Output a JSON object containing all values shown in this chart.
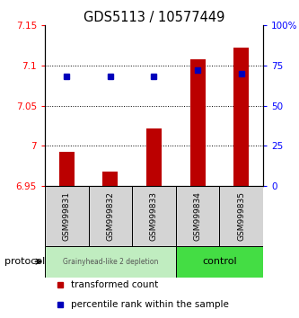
{
  "title": "GDS5113 / 10577449",
  "samples": [
    "GSM999831",
    "GSM999832",
    "GSM999833",
    "GSM999834",
    "GSM999835"
  ],
  "bar_values": [
    6.992,
    6.968,
    7.022,
    7.108,
    7.122
  ],
  "percentile_values": [
    68,
    68,
    68,
    72,
    70
  ],
  "bar_baseline": 6.95,
  "ylim_left": [
    6.95,
    7.15
  ],
  "ylim_right": [
    0,
    100
  ],
  "yticks_left": [
    6.95,
    7.0,
    7.05,
    7.1,
    7.15
  ],
  "ytick_labels_left": [
    "6.95",
    "7",
    "7.05",
    "7.1",
    "7.15"
  ],
  "yticks_right": [
    0,
    25,
    50,
    75,
    100
  ],
  "ytick_labels_right": [
    "0",
    "25",
    "50",
    "75",
    "100%"
  ],
  "hline_values": [
    7.0,
    7.05,
    7.1
  ],
  "group1_label": "Grainyhead-like 2 depletion",
  "group2_label": "control",
  "group1_color": "#c0edc0",
  "group2_color": "#44dd44",
  "group1_indices": [
    0,
    1,
    2
  ],
  "group2_indices": [
    3,
    4
  ],
  "bar_color": "#bb0000",
  "percentile_color": "#0000bb",
  "protocol_label": "protocol",
  "legend1_label": "transformed count",
  "legend2_label": "percentile rank within the sample",
  "bar_width": 0.35,
  "title_fontsize": 10.5,
  "tick_fontsize": 7.5,
  "sample_fontsize": 6.5,
  "legend_fontsize": 7.5
}
